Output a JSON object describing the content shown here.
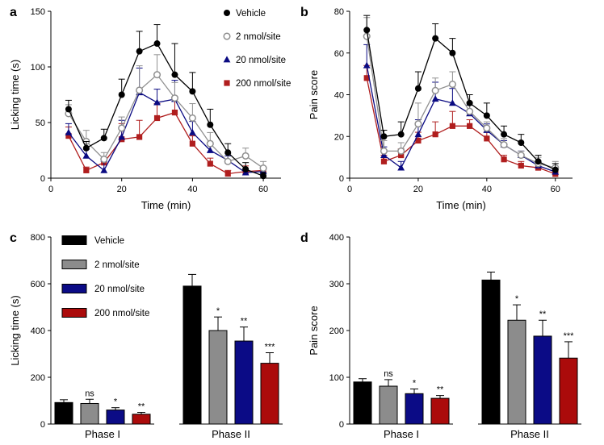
{
  "chart_data": [
    {
      "panel": "a",
      "type": "line",
      "xlabel": "Time (min)",
      "ylabel": "Licking time (s)",
      "xlim": [
        0,
        65
      ],
      "ylim": [
        0,
        150
      ],
      "xticks": [
        0,
        20,
        40,
        60
      ],
      "yticks": [
        0,
        50,
        100,
        150
      ],
      "x": [
        5,
        10,
        15,
        20,
        25,
        30,
        35,
        40,
        45,
        50,
        55,
        60
      ],
      "series": [
        {
          "name": "Vehicle",
          "color": "#000000",
          "marker": "circle-filled",
          "values": [
            62,
            27,
            36,
            75,
            114,
            121,
            93,
            78,
            48,
            23,
            8,
            2
          ],
          "errors": [
            8,
            6,
            8,
            14,
            18,
            17,
            28,
            17,
            14,
            8,
            6,
            3
          ]
        },
        {
          "name": "2 nmol/site",
          "color": "#909090",
          "marker": "circle-open",
          "values": [
            58,
            33,
            17,
            45,
            79,
            93,
            72,
            54,
            31,
            15,
            20,
            9
          ],
          "errors": [
            8,
            10,
            6,
            10,
            22,
            18,
            14,
            13,
            10,
            7,
            7,
            6
          ]
        },
        {
          "name": "20 nmol/site",
          "color": "#0a0a82",
          "marker": "triangle",
          "values": [
            41,
            20,
            7,
            37,
            77,
            68,
            71,
            41,
            25,
            16,
            5,
            6
          ],
          "errors": [
            8,
            6,
            8,
            15,
            22,
            12,
            17,
            10,
            6,
            4,
            3,
            4
          ]
        },
        {
          "name": "200 nmol/site",
          "color": "#b01e1e",
          "marker": "square",
          "values": [
            38,
            7,
            14,
            35,
            37,
            54,
            59,
            31,
            13,
            4,
            6,
            7
          ],
          "errors": [
            8,
            3,
            4,
            14,
            15,
            13,
            13,
            7,
            5,
            3,
            5,
            3
          ]
        }
      ]
    },
    {
      "panel": "b",
      "type": "line",
      "xlabel": "Time (min)",
      "ylabel": "Pain score",
      "xlim": [
        0,
        65
      ],
      "ylim": [
        0,
        80
      ],
      "xticks": [
        0,
        20,
        40,
        60
      ],
      "yticks": [
        0,
        20,
        40,
        60,
        80
      ],
      "x": [
        5,
        10,
        15,
        20,
        25,
        30,
        35,
        40,
        45,
        50,
        55,
        60
      ],
      "series": [
        {
          "name": "Vehicle",
          "color": "#000000",
          "marker": "circle-filled",
          "values": [
            71,
            20,
            21,
            43,
            67,
            60,
            36,
            30,
            21,
            17,
            8,
            4
          ],
          "errors": [
            7,
            3,
            6,
            8,
            7,
            7,
            4,
            6,
            4,
            4,
            3,
            3
          ]
        },
        {
          "name": "2 nmol/site",
          "color": "#909090",
          "marker": "circle-open",
          "values": [
            68,
            13,
            13,
            26,
            42,
            45,
            32,
            24,
            16,
            11,
            7,
            5
          ],
          "errors": [
            9,
            5,
            4,
            10,
            6,
            6,
            4,
            3,
            3,
            2,
            3,
            3
          ]
        },
        {
          "name": "20 nmol/site",
          "color": "#0a0a82",
          "marker": "triangle",
          "values": [
            54,
            11,
            5,
            21,
            38,
            36,
            31,
            23,
            16,
            11,
            6,
            3
          ],
          "errors": [
            10,
            4,
            3,
            7,
            8,
            7,
            4,
            3,
            2,
            2,
            2,
            2
          ]
        },
        {
          "name": "200 nmol/site",
          "color": "#b01e1e",
          "marker": "square",
          "values": [
            48,
            8,
            11,
            18,
            21,
            25,
            25,
            19,
            9,
            6,
            5,
            2
          ],
          "errors": [
            6,
            3,
            3,
            4,
            6,
            7,
            3,
            3,
            2,
            2,
            2,
            1
          ]
        }
      ]
    },
    {
      "panel": "c",
      "type": "bar",
      "ylabel": "Licking time (s)",
      "ylim": [
        0,
        800
      ],
      "yticks": [
        0,
        200,
        400,
        600,
        800
      ],
      "categories": [
        "Phase I",
        "Phase II"
      ],
      "series": [
        {
          "name": "Vehicle",
          "color": "#000000",
          "values": [
            92,
            590
          ],
          "errors": [
            12,
            50
          ],
          "sig": [
            "",
            ""
          ]
        },
        {
          "name": "2 nmol/site",
          "color": "#8c8c8c",
          "values": [
            88,
            400
          ],
          "errors": [
            18,
            58
          ],
          "sig": [
            "ns",
            "*"
          ]
        },
        {
          "name": "20 nmol/site",
          "color": "#0b0b86",
          "values": [
            60,
            355
          ],
          "errors": [
            10,
            60
          ],
          "sig": [
            "*",
            "**"
          ]
        },
        {
          "name": "200 nmol/site",
          "color": "#ab0b0b",
          "values": [
            42,
            260
          ],
          "errors": [
            8,
            45
          ],
          "sig": [
            "**",
            "***"
          ]
        }
      ]
    },
    {
      "panel": "d",
      "type": "bar",
      "ylabel": "Pain score",
      "ylim": [
        0,
        400
      ],
      "yticks": [
        0,
        100,
        200,
        300,
        400
      ],
      "categories": [
        "Phase I",
        "Phase II"
      ],
      "series": [
        {
          "name": "Vehicle",
          "color": "#000000",
          "values": [
            90,
            308
          ],
          "errors": [
            7,
            17
          ],
          "sig": [
            "",
            ""
          ]
        },
        {
          "name": "2 nmol/site",
          "color": "#8c8c8c",
          "values": [
            81,
            222
          ],
          "errors": [
            14,
            33
          ],
          "sig": [
            "ns",
            "*"
          ]
        },
        {
          "name": "20 nmol/site",
          "color": "#0b0b86",
          "values": [
            65,
            188
          ],
          "errors": [
            10,
            34
          ],
          "sig": [
            "*",
            "**"
          ]
        },
        {
          "name": "200 nmol/site",
          "color": "#ab0b0b",
          "values": [
            55,
            141
          ],
          "errors": [
            6,
            35
          ],
          "sig": [
            "**",
            "***"
          ]
        }
      ]
    }
  ]
}
